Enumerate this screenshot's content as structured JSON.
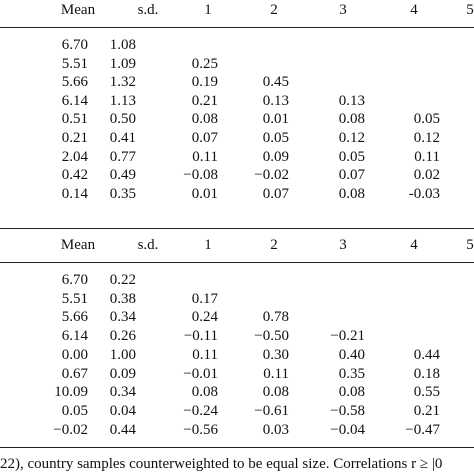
{
  "panels": [
    {
      "header": [
        "Mean",
        "s.d.",
        "1",
        "2",
        "3",
        "4",
        "5"
      ],
      "rows": [
        [
          "6.70",
          "1.08"
        ],
        [
          "5.51",
          "1.09",
          "0.25"
        ],
        [
          "5.66",
          "1.32",
          "0.19",
          "0.45"
        ],
        [
          "6.14",
          "1.13",
          "0.21",
          "0.13",
          "0.13"
        ],
        [
          "0.51",
          "0.50",
          "0.08",
          "0.01",
          "0.08",
          "0.05"
        ],
        [
          "0.21",
          "0.41",
          "0.07",
          "0.05",
          "0.12",
          "0.12"
        ],
        [
          "2.04",
          "0.77",
          "0.11",
          "0.09",
          "0.05",
          "0.11"
        ],
        [
          "0.42",
          "0.49",
          "−0.08",
          "−0.02",
          "0.07",
          "0.02"
        ],
        [
          "0.14",
          "0.35",
          "0.01",
          "0.07",
          "0.08",
          "-0.03"
        ]
      ]
    },
    {
      "header": [
        "Mean",
        "s.d.",
        "1",
        "2",
        "3",
        "4",
        "5"
      ],
      "rows": [
        [
          "6.70",
          "0.22"
        ],
        [
          "5.51",
          "0.38",
          "0.17"
        ],
        [
          "5.66",
          "0.34",
          "0.24",
          "0.78"
        ],
        [
          "6.14",
          "0.26",
          "−0.11",
          "−0.50",
          "−0.21"
        ],
        [
          "0.00",
          "1.00",
          "0.11",
          "0.30",
          "0.40",
          "0.44"
        ],
        [
          "0.67",
          "0.09",
          "−0.01",
          "0.11",
          "0.35",
          "0.18"
        ],
        [
          "10.09",
          "0.34",
          "0.08",
          "0.08",
          "0.08",
          "0.55"
        ],
        [
          "0.05",
          "0.04",
          "−0.24",
          "−0.61",
          "−0.58",
          "0.21"
        ],
        [
          "−0.02",
          "0.44",
          "−0.56",
          "0.03",
          "−0.04",
          "−0.47"
        ]
      ]
    }
  ],
  "footer": "22), country samples counterweighted to be equal size. Correlations r ≥ |0"
}
